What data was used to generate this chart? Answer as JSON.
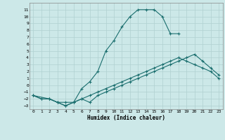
{
  "xlabel": "Humidex (Indice chaleur)",
  "background_color": "#cce8e8",
  "grid_color": "#b0d0d0",
  "line_color": "#1a6e6e",
  "xlim": [
    -0.5,
    23.5
  ],
  "ylim": [
    -3.5,
    12.0
  ],
  "xticks": [
    0,
    1,
    2,
    3,
    4,
    5,
    6,
    7,
    8,
    9,
    10,
    11,
    12,
    13,
    14,
    15,
    16,
    17,
    18,
    19,
    20,
    21,
    22,
    23
  ],
  "yticks": [
    -3,
    -2,
    -1,
    0,
    1,
    2,
    3,
    4,
    5,
    6,
    7,
    8,
    9,
    10,
    11
  ],
  "line1_x": [
    0,
    1,
    2,
    3,
    4,
    5,
    6,
    7,
    8,
    9,
    10,
    11,
    12,
    13,
    14,
    15,
    16,
    17,
    18
  ],
  "line1_y": [
    -1.5,
    -2.0,
    -2.0,
    -2.5,
    -2.5,
    -2.5,
    -0.5,
    0.5,
    2.0,
    5.0,
    6.5,
    8.5,
    10.0,
    11.0,
    11.0,
    11.0,
    10.0,
    7.5,
    7.5
  ],
  "line2_x": [
    0,
    1,
    2,
    3,
    4,
    5,
    6,
    7,
    8,
    9,
    10,
    11,
    12,
    13,
    14,
    15,
    16,
    17,
    18,
    19,
    20,
    21,
    22,
    23
  ],
  "line2_y": [
    -1.5,
    -2.0,
    -2.0,
    -2.5,
    -3.0,
    -2.5,
    -2.0,
    -1.5,
    -1.0,
    -0.5,
    0.0,
    0.5,
    1.0,
    1.5,
    2.0,
    2.5,
    3.0,
    3.5,
    4.0,
    3.5,
    3.0,
    2.5,
    2.0,
    1.0
  ],
  "line3_x": [
    0,
    2,
    3,
    4,
    5,
    6,
    7,
    8,
    9,
    10,
    11,
    12,
    13,
    14,
    15,
    16,
    17,
    18,
    19,
    20,
    21,
    22,
    23
  ],
  "line3_y": [
    -1.5,
    -2.0,
    -2.5,
    -3.0,
    -2.5,
    -2.0,
    -2.5,
    -1.5,
    -1.0,
    -0.5,
    0.0,
    0.5,
    1.0,
    1.5,
    2.0,
    2.5,
    3.0,
    3.5,
    4.0,
    4.5,
    3.5,
    2.5,
    1.5
  ]
}
